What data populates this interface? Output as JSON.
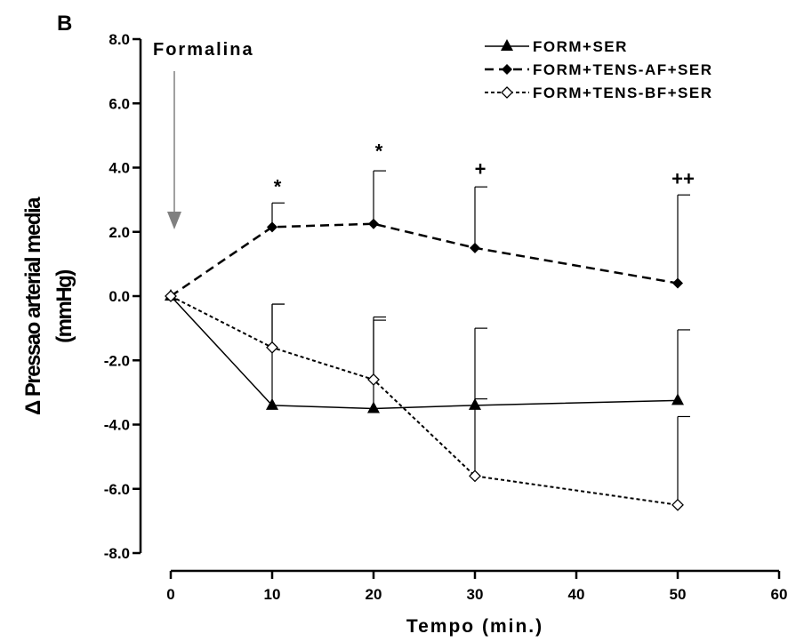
{
  "chart_data": {
    "type": "line",
    "panel_label": "B",
    "xlabel": "Tempo (min.)",
    "ylabel_line1": "Δ Pressao arterial media",
    "ylabel_line2": "(mmHg)",
    "xlim": [
      0,
      60
    ],
    "ylim": [
      -8,
      8
    ],
    "xticks": [
      0,
      10,
      20,
      30,
      40,
      50,
      60
    ],
    "yticks": [
      {
        "value": 8,
        "label": "8.0"
      },
      {
        "value": 6,
        "label": "6.0"
      },
      {
        "value": 4,
        "label": "4.0"
      },
      {
        "value": 2,
        "label": "2.0"
      },
      {
        "value": 0,
        "label": "0.0"
      },
      {
        "value": -2,
        "label": "-2.0"
      },
      {
        "value": -4,
        "label": "-4.0"
      },
      {
        "value": -6,
        "label": "-6.0"
      },
      {
        "value": -8,
        "label": "-8.0"
      }
    ],
    "grid": false,
    "legend_position": "top-right",
    "annotation": {
      "text": "Formalina",
      "x": 0
    },
    "series": [
      {
        "name": "FORM+SER",
        "line_style": "solid",
        "marker": "triangle-filled",
        "x": [
          0,
          10,
          20,
          30,
          50
        ],
        "y": [
          0.0,
          -3.4,
          -3.5,
          -3.4,
          -3.25
        ],
        "error": [
          0,
          3.15,
          2.75,
          2.4,
          2.2
        ],
        "error_direction": [
          "none",
          "up",
          "up",
          "up",
          "up"
        ]
      },
      {
        "name": "FORM+TENS-AF+SER",
        "line_style": "dashed",
        "marker": "diamond-filled",
        "x": [
          0,
          10,
          20,
          30,
          50
        ],
        "y": [
          0.0,
          2.15,
          2.25,
          1.5,
          0.4
        ],
        "error": [
          0,
          0.75,
          1.65,
          1.9,
          2.75
        ],
        "error_direction": [
          "none",
          "up",
          "up",
          "up",
          "up"
        ]
      },
      {
        "name": "FORM+TENS-BF+SER",
        "line_style": "dotted",
        "marker": "diamond-open",
        "x": [
          0,
          10,
          20,
          30,
          50
        ],
        "y": [
          0.0,
          -1.6,
          -2.6,
          -5.6,
          -6.5
        ],
        "error": [
          0,
          1.35,
          1.95,
          2.4,
          2.75
        ],
        "error_direction": [
          "none",
          "up",
          "up",
          "up",
          "up"
        ]
      }
    ],
    "significance_marks": [
      {
        "x": 10,
        "y": 3.2,
        "text": "*"
      },
      {
        "x": 20,
        "y": 4.3,
        "text": "*"
      },
      {
        "x": 30,
        "y": 3.75,
        "text": "+"
      },
      {
        "x": 50,
        "y": 3.45,
        "text": "++"
      }
    ]
  }
}
